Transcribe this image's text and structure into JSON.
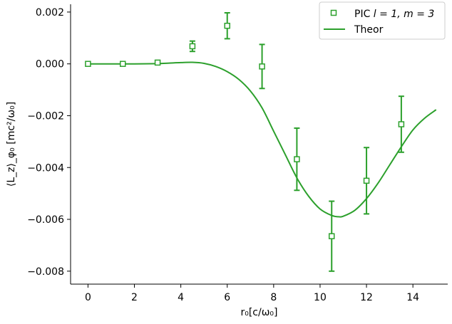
{
  "chart_data": {
    "type": "scatter",
    "xlabel": "r₀[c/ω₀]",
    "ylabel": "⟨L_z⟩_φ₀ [mc²/ω₀]",
    "xlim": [
      -0.75,
      15.5
    ],
    "ylim": [
      -0.0085,
      0.0023
    ],
    "x_ticks": [
      0,
      2,
      4,
      6,
      8,
      10,
      12,
      14
    ],
    "x_tick_labels": [
      "0",
      "2",
      "4",
      "6",
      "8",
      "10",
      "12",
      "14"
    ],
    "y_ticks": [
      0.002,
      0.0,
      -0.002,
      -0.004,
      -0.006,
      -0.008
    ],
    "y_tick_labels": [
      "0.002",
      "0.000",
      "−0.002",
      "−0.004",
      "−0.006",
      "−0.008"
    ],
    "grid": false,
    "legend_position": "top-right",
    "color": "#2ca02c",
    "series": [
      {
        "name": "PIC l = 1, m = 3",
        "label_main": "PIC ",
        "label_math": "l = 1, m = 3",
        "marker": "open-square",
        "x": [
          0,
          1.5,
          3,
          4.5,
          6,
          7.5,
          9,
          10.5,
          12,
          13.5
        ],
        "y": [
          0.0,
          0.0,
          5e-05,
          0.00068,
          0.00147,
          -0.0001,
          -0.00368,
          -0.00665,
          -0.00451,
          -0.00233
        ],
        "yerr": [
          3e-05,
          3e-05,
          6e-05,
          0.0002,
          0.0005,
          0.00085,
          0.0012,
          0.00135,
          0.00128,
          0.00108
        ]
      },
      {
        "name": "Theor",
        "style": "line",
        "x": [
          0,
          1,
          2,
          3,
          3.5,
          4,
          4.5,
          5,
          5.5,
          6,
          6.5,
          7,
          7.5,
          8,
          8.5,
          9,
          9.5,
          10,
          10.5,
          10.8,
          11,
          11.5,
          12,
          12.5,
          13,
          13.5,
          14,
          14.5,
          15
        ],
        "y": [
          0.0,
          0.0,
          0.0,
          1e-05,
          3e-05,
          5e-05,
          6e-05,
          2e-05,
          -0.0001,
          -0.0003,
          -0.0006,
          -0.00105,
          -0.0017,
          -0.0026,
          -0.0035,
          -0.0044,
          -0.0051,
          -0.0056,
          -0.00585,
          -0.0059,
          -0.00588,
          -0.00565,
          -0.0052,
          -0.0046,
          -0.0039,
          -0.0032,
          -0.00255,
          -0.0021,
          -0.00177
        ]
      }
    ]
  }
}
